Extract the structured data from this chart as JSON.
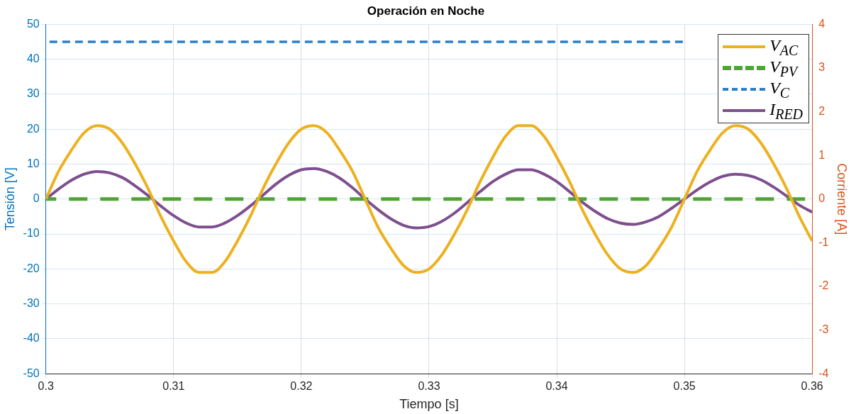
{
  "chart_data": {
    "type": "line",
    "title": "Operación en Noche",
    "xlabel": "Tiempo [s]",
    "ylabel": "Tensión [V]",
    "y2label": "Corriente [A]",
    "xlim": [
      0.3,
      0.36
    ],
    "xticks": [
      0.3,
      0.31,
      0.32,
      0.33,
      0.34,
      0.35,
      0.36
    ],
    "ylim": [
      -50,
      50
    ],
    "yticks": [
      -50,
      -40,
      -30,
      -20,
      -10,
      0,
      10,
      20,
      30,
      40,
      50
    ],
    "y2lim": [
      -4,
      4
    ],
    "y2ticks": [
      -4,
      -3,
      -2,
      -1,
      0,
      1,
      2,
      3,
      4
    ],
    "grid": true,
    "legend": "top right",
    "marker": "none",
    "series": [
      {
        "name": "V$_{AC}$",
        "color": "#edb120",
        "line_style": "solid",
        "x": [
          0.3,
          0.301,
          0.302,
          0.303,
          0.304,
          0.305,
          0.306,
          0.307,
          0.308,
          0.309,
          0.31,
          0.311,
          0.312,
          0.313,
          0.314,
          0.315,
          0.316,
          0.317,
          0.318,
          0.319,
          0.32,
          0.321,
          0.322,
          0.323,
          0.324,
          0.325,
          0.326,
          0.327,
          0.328,
          0.329,
          0.33,
          0.331,
          0.332,
          0.333,
          0.334,
          0.335,
          0.336,
          0.337,
          0.338,
          0.339,
          0.34,
          0.341,
          0.342,
          0.343,
          0.344,
          0.345,
          0.346,
          0.347,
          0.348,
          0.349,
          0.35,
          0.351,
          0.352,
          0.353,
          0.354,
          0.355,
          0.356,
          0.357,
          0.358,
          0.359,
          0.36
        ],
        "values": [
          0,
          8,
          14,
          19,
          21,
          20,
          16,
          10,
          3,
          -5,
          -12,
          -18,
          -21,
          -21,
          -18,
          -12,
          -5,
          3,
          10,
          16,
          20,
          21,
          19,
          14,
          8,
          0,
          -8,
          -14,
          -19,
          -21,
          -20,
          -16,
          -10,
          -3,
          5,
          12,
          18,
          21,
          21,
          18,
          12,
          5,
          -3,
          -10,
          -16,
          -20,
          -21,
          -19,
          -14,
          -8,
          0,
          8,
          14,
          19,
          21,
          20,
          16,
          10,
          3,
          -5,
          -12
        ]
      },
      {
        "name": "V$_{PV}$",
        "color": "#4da534",
        "line_style": "dashed",
        "x": [
          0.3,
          0.36
        ],
        "values": [
          0,
          0
        ]
      },
      {
        "name": "V$_{C}$",
        "color": "#2a7fc7",
        "line_style": "dashed",
        "x": [
          0.3,
          0.35
        ],
        "values": [
          45,
          45
        ]
      },
      {
        "name": "I$_{RED}$",
        "color": "#7e4f8e",
        "line_style": "solid",
        "axis": "y2",
        "x": [
          0.3,
          0.301,
          0.302,
          0.303,
          0.304,
          0.305,
          0.306,
          0.307,
          0.308,
          0.309,
          0.31,
          0.311,
          0.312,
          0.313,
          0.314,
          0.315,
          0.316,
          0.317,
          0.318,
          0.319,
          0.32,
          0.321,
          0.322,
          0.323,
          0.324,
          0.325,
          0.326,
          0.327,
          0.328,
          0.329,
          0.33,
          0.331,
          0.332,
          0.333,
          0.334,
          0.335,
          0.336,
          0.337,
          0.338,
          0.339,
          0.34,
          0.341,
          0.342,
          0.343,
          0.344,
          0.345,
          0.346,
          0.347,
          0.348,
          0.349,
          0.35,
          0.351,
          0.352,
          0.353,
          0.354,
          0.355,
          0.356,
          0.357,
          0.358,
          0.359,
          0.36
        ],
        "values": [
          0,
          0.23,
          0.43,
          0.57,
          0.63,
          0.6,
          0.49,
          0.3,
          0.08,
          -0.16,
          -0.38,
          -0.55,
          -0.64,
          -0.64,
          -0.55,
          -0.38,
          -0.16,
          0.09,
          0.34,
          0.54,
          0.67,
          0.7,
          0.63,
          0.48,
          0.26,
          0,
          -0.24,
          -0.45,
          -0.6,
          -0.66,
          -0.63,
          -0.51,
          -0.32,
          -0.08,
          0.17,
          0.4,
          0.57,
          0.67,
          0.67,
          0.57,
          0.4,
          0.17,
          -0.07,
          -0.28,
          -0.45,
          -0.55,
          -0.58,
          -0.52,
          -0.4,
          -0.21,
          0,
          0.21,
          0.39,
          0.52,
          0.57,
          0.54,
          0.44,
          0.27,
          0.07,
          -0.14,
          -0.3
        ]
      }
    ]
  }
}
